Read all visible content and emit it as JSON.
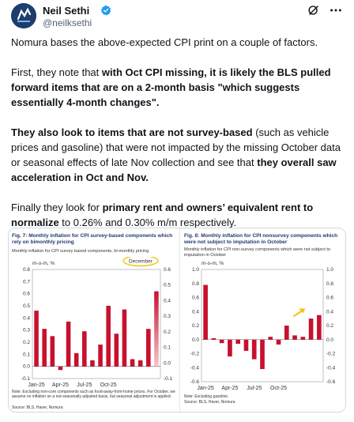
{
  "author": {
    "name": "Neil Sethi",
    "handle": "@neilksethi"
  },
  "icons": {
    "verified": "verified-badge-icon",
    "grok": "grok-icon",
    "more": "more-options-icon"
  },
  "tweet": {
    "p1": "Nomura bases the above-expected CPI print on a couple of factors.",
    "p2_a": "First, they note that ",
    "p2_b": "with Oct CPI missing, it is likely the BLS pulled forward items that are on a 2-month basis",
    "p2_c": "  \"which suggests essentially 4-month changes\".",
    "p3_a": "They also look to items that are not survey-based",
    "p3_b": " (such as vehicle prices and gasoline) that were not impacted by the missing October data or seasonal effects of late Nov collection and see that ",
    "p3_c": "they overall saw acceleration in Oct and Nov.",
    "p4_a": "Finally they look for ",
    "p4_b": "primary rent and owners’ equivalent rent to normalize",
    "p4_c": " to 0.26% and 0.30% m/m respectively."
  },
  "colors": {
    "bar": "#c8102e",
    "highlight_bar": "#f4c7cc",
    "title_blue": "#1f3a6e",
    "circle_yellow": "#f1c40f",
    "arrow_yellow": "#f1c40f"
  },
  "chart_data": [
    {
      "type": "bar",
      "title": "Fig. 7: Monthly inflation for CPI survey-based components which rely on bimonthly pricing",
      "subtitle": "Monthly inflation for CPI survey based components, bi-monthly pricing",
      "ylabel": "m-o-m, %",
      "ylim": [
        -0.1,
        0.8
      ],
      "ylim_right": [
        -0.1,
        0.6
      ],
      "yticks": [
        "0.8",
        "0.7",
        "0.6",
        "0.5",
        "0.4",
        "0.3",
        "0.2",
        "0.1",
        "0.0",
        "-0.1"
      ],
      "yticks_right": [
        "0.6",
        "0.5",
        "0.4",
        "0.3",
        "0.2",
        "0.1",
        "0.0",
        "-0.1"
      ],
      "xticks": [
        "Jan-25",
        "Apr-25",
        "Jul-25",
        "Oct-25"
      ],
      "annotation": "December",
      "values": [
        0.46,
        0.31,
        0.25,
        -0.03,
        0.37,
        0.11,
        0.29,
        0.05,
        0.18,
        0.5,
        0.27,
        0.47,
        0.06,
        0.05,
        0.31,
        0.62
      ],
      "highlight_last": true,
      "note": "Note: Excluding non-core components such as food-away-from-home prices. For October, we assume no inflation on a not-seasonally adjusted basis, but seasonal adjustment is applied.",
      "source": "Source: BLS, Haver, Nomura"
    },
    {
      "type": "bar",
      "title": "Fig. 8: Monthly inflation for CPI nonsurvey components which were not subject to imputation in October",
      "subtitle": "Monthly inflation for CPI non-survey components which were not subject to imputation in October",
      "ylabel": "m-o-m, %",
      "ylim": [
        -0.6,
        1.0
      ],
      "yticks": [
        "1.0",
        "0.8",
        "0.6",
        "0.4",
        "0.2",
        "0.0",
        "-0.2",
        "-0.4",
        "-0.6"
      ],
      "xticks": [
        "Jan-25",
        "Apr-25",
        "Jul-25",
        "Oct-25"
      ],
      "values": [
        0.78,
        0.02,
        -0.05,
        -0.24,
        -0.06,
        -0.16,
        -0.28,
        -0.42,
        0.04,
        -0.07,
        0.2,
        0.06,
        0.04,
        0.3,
        0.35
      ],
      "note": "Note: Excluding gasoline.",
      "source": "Source: BLS, Haver, Nomura"
    }
  ]
}
